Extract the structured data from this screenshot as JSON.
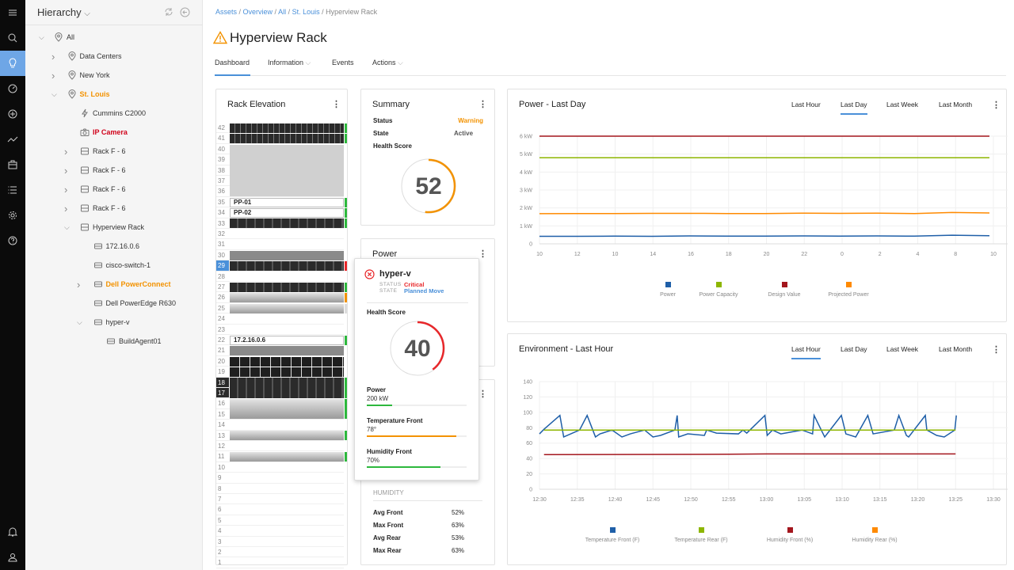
{
  "rail": {
    "items": [
      "menu-icon",
      "search-icon",
      "lightbulb-icon",
      "gauge-icon",
      "plus-circle-icon",
      "trend-icon",
      "briefcase-icon",
      "list-icon",
      "gear-icon",
      "help-icon",
      "bell-icon",
      "user-icon"
    ],
    "active": "lightbulb-icon",
    "active_color": "#6ea6e6"
  },
  "sidebar": {
    "title": "Hierarchy",
    "tree": [
      {
        "label": "All",
        "level": 0,
        "expander": "expanded",
        "icon": "pin"
      },
      {
        "label": "Data Centers",
        "level": 1,
        "expander": "collapsed",
        "icon": "pin"
      },
      {
        "label": "New York",
        "level": 1,
        "expander": "collapsed",
        "icon": "pin"
      },
      {
        "label": "St. Louis",
        "level": 1,
        "expander": "expanded",
        "icon": "pin",
        "color": "#f39200"
      },
      {
        "label": "Cummins C2000",
        "level": 2,
        "expander": "none",
        "icon": "bolt"
      },
      {
        "label": "IP Camera",
        "level": 2,
        "expander": "none",
        "icon": "camera",
        "color": "#d0021b"
      },
      {
        "label": "Rack F - 6",
        "level": 2,
        "expander": "collapsed",
        "icon": "rack"
      },
      {
        "label": "Rack F - 6",
        "level": 2,
        "expander": "collapsed",
        "icon": "rack"
      },
      {
        "label": "Rack F - 6",
        "level": 2,
        "expander": "collapsed",
        "icon": "rack"
      },
      {
        "label": "Rack F - 6",
        "level": 2,
        "expander": "collapsed",
        "icon": "rack"
      },
      {
        "label": "Hyperview Rack",
        "level": 2,
        "expander": "expanded",
        "icon": "rack"
      },
      {
        "label": "172.16.0.6",
        "level": 3,
        "expander": "none",
        "icon": "server"
      },
      {
        "label": "cisco-switch-1",
        "level": 3,
        "expander": "none",
        "icon": "server"
      },
      {
        "label": "Dell PowerConnect",
        "level": 3,
        "expander": "collapsed",
        "icon": "server",
        "color": "#f39200"
      },
      {
        "label": "Dell PowerEdge R630",
        "level": 3,
        "expander": "none",
        "icon": "server"
      },
      {
        "label": "hyper-v",
        "level": 3,
        "expander": "expanded",
        "icon": "server"
      },
      {
        "label": "BuildAgent01",
        "level": 4,
        "expander": "none",
        "icon": "server"
      }
    ]
  },
  "breadcrumb": [
    "Assets",
    "Overview",
    "All",
    "St. Louis",
    "Hyperview Rack"
  ],
  "header": {
    "title": "Hyperview Rack",
    "status_icon": "warning-icon"
  },
  "tabs": [
    {
      "label": "Dashboard",
      "active": true
    },
    {
      "label": "Information",
      "dropdown": true
    },
    {
      "label": "Events"
    },
    {
      "label": "Actions",
      "dropdown": true
    }
  ],
  "rack": {
    "title": "Rack Elevation",
    "units": 42,
    "selected_unit": 29,
    "devices": [
      {
        "top": 42,
        "size": 1,
        "kind": "switch",
        "status": "ok"
      },
      {
        "top": 41,
        "size": 1,
        "kind": "switch",
        "status": "ok"
      },
      {
        "top": 40,
        "size": 5,
        "kind": "reserved"
      },
      {
        "top": 35,
        "size": 1,
        "kind": "label",
        "label": "PP-01",
        "status": "ok"
      },
      {
        "top": 34,
        "size": 1,
        "kind": "label",
        "label": "PP-02",
        "status": "ok"
      },
      {
        "top": 33,
        "size": 1,
        "kind": "dark",
        "status": "ok"
      },
      {
        "top": 30,
        "size": 1,
        "kind": "blank"
      },
      {
        "top": 29,
        "size": 1,
        "kind": "dark",
        "status": "critical"
      },
      {
        "top": 27,
        "size": 1,
        "kind": "dark",
        "status": "ok"
      },
      {
        "top": 26,
        "size": 1,
        "kind": "silver",
        "status": "warning"
      },
      {
        "top": 25,
        "size": 1,
        "kind": "silver",
        "status": "none"
      },
      {
        "top": 22,
        "size": 1,
        "kind": "label",
        "label": "17.2.16.0.6",
        "status": "ok"
      },
      {
        "top": 21,
        "size": 1,
        "kind": "blank"
      },
      {
        "top": 20,
        "size": 1,
        "kind": "patch"
      },
      {
        "top": 19,
        "size": 1,
        "kind": "patch"
      },
      {
        "top": 18,
        "size": 2,
        "kind": "dark",
        "status": "ok"
      },
      {
        "top": 16,
        "size": 2,
        "kind": "silver",
        "status": "ok"
      },
      {
        "top": 13,
        "size": 1,
        "kind": "silver",
        "status": "ok"
      },
      {
        "top": 11,
        "size": 1,
        "kind": "silver",
        "status": "ok"
      }
    ],
    "status_colors": {
      "ok": "#2db83d",
      "critical": "#e8272a",
      "warning": "#f39200",
      "none": "#ddd"
    }
  },
  "summary": {
    "title": "Summary",
    "rows": [
      {
        "k": "Status",
        "v": "Warning",
        "color": "#f39200"
      },
      {
        "k": "State",
        "v": "Active",
        "color": "#555"
      },
      {
        "k": "Health Score",
        "v": ""
      }
    ],
    "health_score": 52,
    "gauge_color": "#f39200"
  },
  "power_card": {
    "title": "Power"
  },
  "humidity": {
    "section": "HUMIDITY",
    "rows": [
      {
        "k": "Avg Front",
        "v": "52%"
      },
      {
        "k": "Max Front",
        "v": "63%"
      },
      {
        "k": "Avg Rear",
        "v": "53%"
      },
      {
        "k": "Max Rear",
        "v": "63%"
      }
    ]
  },
  "popup": {
    "name": "hyper-v",
    "status_label": "STATUS",
    "status": "Critical",
    "state_label": "STATE",
    "state": "Planned Move",
    "health_label": "Health Score",
    "health_score": 40,
    "gauge_color": "#e8272a",
    "metrics": [
      {
        "label": "Power",
        "value": "200 kW",
        "fill": 0.25,
        "color": "#2db83d"
      },
      {
        "label": "Temperature Front",
        "value": "78°",
        "fill": 0.9,
        "color": "#f39200"
      },
      {
        "label": "Humidity Front",
        "value": "70%",
        "fill": 0.74,
        "color": "#2db83d"
      }
    ]
  },
  "chart_data": [
    {
      "type": "line",
      "title": "Power - Last Day",
      "ranges": [
        "Last Hour",
        "Last Day",
        "Last Week",
        "Last Month"
      ],
      "active_range": "Last Day",
      "categories": [
        "10",
        "12",
        "10",
        "14",
        "16",
        "18",
        "20",
        "22",
        "0",
        "2",
        "4",
        "8",
        "10"
      ],
      "yticks": [
        "0",
        "1 kW",
        "2 kW",
        "3 kW",
        "4 kW",
        "5 kW",
        "6 kW"
      ],
      "ylim": [
        0,
        6
      ],
      "grid": true,
      "legend": "bottom",
      "series": [
        {
          "name": "Power",
          "color": "#1f5fa8",
          "values": [
            0.42,
            0.42,
            0.43,
            0.42,
            0.44,
            0.43,
            0.43,
            0.44,
            0.43,
            0.44,
            0.43,
            0.48,
            0.45
          ]
        },
        {
          "name": "Power Capacity",
          "color": "#8db600",
          "values": [
            4.8,
            4.8,
            4.8,
            4.8,
            4.8,
            4.8,
            4.8,
            4.8,
            4.8,
            4.8,
            4.8,
            4.8,
            4.8
          ]
        },
        {
          "name": "Design Value",
          "color": "#a3161d",
          "values": [
            6,
            6,
            6,
            6,
            6,
            6,
            6,
            6,
            6,
            6,
            6,
            6,
            6
          ]
        },
        {
          "name": "Projected Power",
          "color": "#ff8a00",
          "values": [
            1.68,
            1.69,
            1.69,
            1.7,
            1.7,
            1.69,
            1.69,
            1.71,
            1.7,
            1.71,
            1.69,
            1.75,
            1.72
          ]
        }
      ]
    },
    {
      "type": "line",
      "title": "Environment - Last Hour",
      "ranges": [
        "Last Hour",
        "Last Day",
        "Last Week",
        "Last Month"
      ],
      "active_range": "Last Hour",
      "xticks": [
        "12:30",
        "12:35",
        "12:40",
        "12:45",
        "12:50",
        "12:55",
        "13:00",
        "13:05",
        "13:10",
        "13:15",
        "13:20",
        "13:25",
        "13:30"
      ],
      "yticks": [
        "0",
        "20",
        "40",
        "60",
        "80",
        "100",
        "120",
        "140"
      ],
      "ylim": [
        0,
        140
      ],
      "grid": true,
      "legend": "bottom",
      "series": [
        {
          "name": "Temperature Front (F)",
          "color": "#1f5fa8",
          "points": [
            [
              "12:30:00",
              72
            ],
            [
              "12:30:36",
              78
            ],
            [
              "12:32:42",
              96
            ],
            [
              "12:33:12",
              68
            ],
            [
              "12:35:18",
              77
            ],
            [
              "12:36:18",
              96
            ],
            [
              "12:37:24",
              68
            ],
            [
              "12:38:00",
              72
            ],
            [
              "12:39:36",
              77
            ],
            [
              "12:40:54",
              68
            ],
            [
              "12:42:00",
              72
            ],
            [
              "12:43:54",
              77
            ],
            [
              "12:45:00",
              68
            ],
            [
              "12:46:00",
              70
            ],
            [
              "12:47:54",
              77
            ],
            [
              "12:48:12",
              96
            ],
            [
              "12:48:24",
              68
            ],
            [
              "12:49:36",
              72
            ],
            [
              "12:51:48",
              70
            ],
            [
              "12:52:06",
              77
            ],
            [
              "12:53:24",
              73
            ],
            [
              "12:56:18",
              72
            ],
            [
              "12:56:54",
              77
            ],
            [
              "12:57:24",
              73
            ],
            [
              "12:59:48",
              96
            ],
            [
              "13:00:06",
              70
            ],
            [
              "13:00:48",
              77
            ],
            [
              "13:01:54",
              72
            ],
            [
              "13:04:42",
              77
            ],
            [
              "13:06:06",
              72
            ],
            [
              "13:06:18",
              96
            ],
            [
              "13:07:42",
              68
            ],
            [
              "13:09:54",
              96
            ],
            [
              "13:10:30",
              72
            ],
            [
              "13:11:48",
              68
            ],
            [
              "13:13:24",
              96
            ],
            [
              "13:14:06",
              72
            ],
            [
              "13:16:54",
              77
            ],
            [
              "13:17:30",
              96
            ],
            [
              "13:18:30",
              70
            ],
            [
              "13:18:48",
              68
            ],
            [
              "13:21:00",
              96
            ],
            [
              "13:21:12",
              77
            ],
            [
              "13:22:30",
              70
            ],
            [
              "13:23:30",
              68
            ],
            [
              "13:24:54",
              77
            ],
            [
              "13:25:06",
              96
            ]
          ]
        },
        {
          "name": "Temperature Rear (F)",
          "color": "#8db600",
          "points": [
            [
              "12:30:36",
              77
            ],
            [
              "13:25:00",
              77
            ]
          ]
        },
        {
          "name": "Humidity Front (%)",
          "color": "#a3161d",
          "points": [
            [
              "12:30:36",
              45
            ],
            [
              "12:55:00",
              45.5
            ],
            [
              "13:00:00",
              46
            ],
            [
              "13:25:00",
              46
            ]
          ]
        },
        {
          "name": "Humidity Rear (%)",
          "color": "#ff8a00",
          "points": []
        }
      ]
    }
  ]
}
